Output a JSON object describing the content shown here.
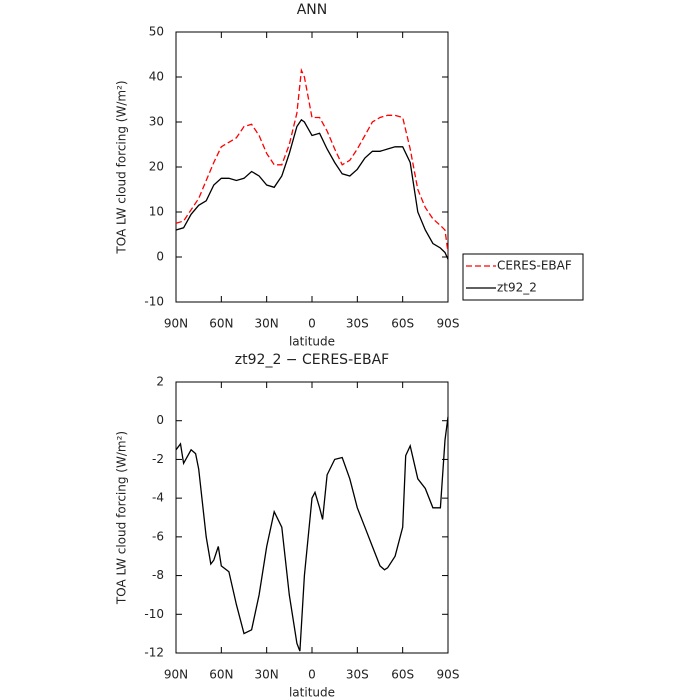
{
  "chart_data": [
    {
      "type": "line",
      "title": "ANN",
      "x_label": "latitude",
      "y_label": "TOA LW cloud forcing (W/m²)",
      "x": [
        90,
        85,
        80,
        75,
        70,
        65,
        60,
        55,
        50,
        45,
        40,
        35,
        30,
        25,
        20,
        15,
        10,
        7,
        5,
        0,
        -5,
        -10,
        -15,
        -20,
        -25,
        -30,
        -35,
        -40,
        -45,
        -50,
        -55,
        -60,
        -65,
        -70,
        -75,
        -80,
        -85,
        -88,
        -90
      ],
      "series": [
        {
          "name": "CERES-EBAF",
          "color": "#ff0000",
          "linestyle": "dashed",
          "values": [
            7.5,
            8,
            10.5,
            13,
            17,
            21,
            24.5,
            25.5,
            26.5,
            29,
            29.5,
            27,
            23,
            20.5,
            20.5,
            25,
            32,
            41.5,
            40,
            31,
            31,
            28,
            24,
            20.5,
            21.5,
            24,
            27,
            30,
            31,
            31.5,
            31.5,
            31,
            24,
            15,
            11,
            8.5,
            7,
            6,
            1
          ]
        },
        {
          "name": "zt92_2",
          "color": "#000000",
          "linestyle": "solid",
          "values": [
            6,
            6.5,
            9.5,
            11.5,
            12.5,
            16,
            17.5,
            17.5,
            17,
            17.5,
            19,
            18,
            16,
            15.5,
            18,
            23,
            29,
            30.5,
            30,
            27,
            27.5,
            24,
            21,
            18.5,
            18,
            19.5,
            22,
            23.5,
            23.5,
            24,
            24.5,
            24.5,
            21,
            10,
            6,
            3,
            2,
            1,
            -0.5
          ]
        }
      ],
      "xlim": [
        90,
        -90
      ],
      "xticks": [
        {
          "value": 90,
          "label": "90N"
        },
        {
          "value": 60,
          "label": "60N"
        },
        {
          "value": 30,
          "label": "30N"
        },
        0,
        {
          "value": -30,
          "label": "30S"
        },
        {
          "value": -60,
          "label": "60S"
        },
        {
          "value": -90,
          "label": "90S"
        }
      ],
      "ylim": [
        -10,
        50
      ],
      "yticks": [
        -10,
        0,
        10,
        20,
        30,
        40,
        50
      ],
      "legend": "right"
    },
    {
      "type": "line",
      "title": "zt92_2 − CERES-EBAF",
      "x_label": "latitude",
      "y_label": "TOA LW cloud forcing (W/m²)",
      "x": [
        90,
        87,
        85,
        80,
        77,
        75,
        70,
        67,
        65,
        62,
        60,
        55,
        50,
        45,
        40,
        35,
        30,
        25,
        20,
        15,
        10,
        8,
        5,
        0,
        -2,
        -5,
        -7,
        -10,
        -15,
        -20,
        -25,
        -30,
        -35,
        -40,
        -45,
        -48,
        -50,
        -55,
        -60,
        -62,
        -65,
        -70,
        -75,
        -80,
        -85,
        -88,
        -90
      ],
      "values": [
        -1.5,
        -1.2,
        -2.2,
        -1.5,
        -1.7,
        -2.5,
        -6,
        -7.4,
        -7.2,
        -6.5,
        -7.5,
        -7.8,
        -9.5,
        -11,
        -10.8,
        -9,
        -6.5,
        -4.7,
        -5.5,
        -9,
        -11.5,
        -11.9,
        -8,
        -4,
        -3.7,
        -4.5,
        -5.1,
        -2.8,
        -2,
        -1.9,
        -3,
        -4.5,
        -5.5,
        -6.5,
        -7.5,
        -7.7,
        -7.6,
        -7,
        -5.5,
        -1.8,
        -1.3,
        -3,
        -3.5,
        -4.5,
        -4.5,
        -1,
        0.2
      ],
      "color": "#000000",
      "linestyle": "solid",
      "xlim": [
        90,
        -90
      ],
      "xticks": [
        {
          "value": 90,
          "label": "90N"
        },
        {
          "value": 60,
          "label": "60N"
        },
        {
          "value": 30,
          "label": "30N"
        },
        0,
        {
          "value": -30,
          "label": "30S"
        },
        {
          "value": -60,
          "label": "60S"
        },
        {
          "value": -90,
          "label": "90S"
        }
      ],
      "ylim": [
        -12,
        2
      ],
      "yticks": [
        -12,
        -10,
        -8,
        -6,
        -4,
        -2,
        0,
        2
      ]
    }
  ]
}
